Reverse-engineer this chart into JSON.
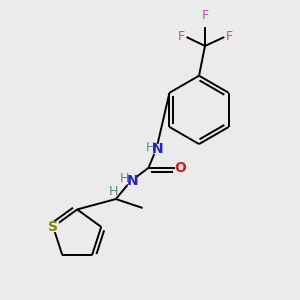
{
  "background_color": "#ebebeb",
  "figsize": [
    3.0,
    3.0
  ],
  "dpi": 100,
  "bond_color": "#000000",
  "bond_width": 1.4,
  "atom_labels": {
    "F_top": {
      "label": "F",
      "color": "#cc44cc"
    },
    "F_left": {
      "label": "F",
      "color": "#cc44cc"
    },
    "F_right": {
      "label": "F",
      "color": "#cc44cc"
    },
    "N1": {
      "label": "N",
      "color": "#2020cc"
    },
    "H1": {
      "label": "H",
      "color": "#4a9090"
    },
    "N2": {
      "label": "N",
      "color": "#2020cc"
    },
    "H2": {
      "label": "H",
      "color": "#4a9090"
    },
    "H3": {
      "label": "H",
      "color": "#4a9090"
    },
    "O1": {
      "label": "O",
      "color": "#cc2020"
    },
    "S1": {
      "label": "S",
      "color": "#888800"
    }
  }
}
